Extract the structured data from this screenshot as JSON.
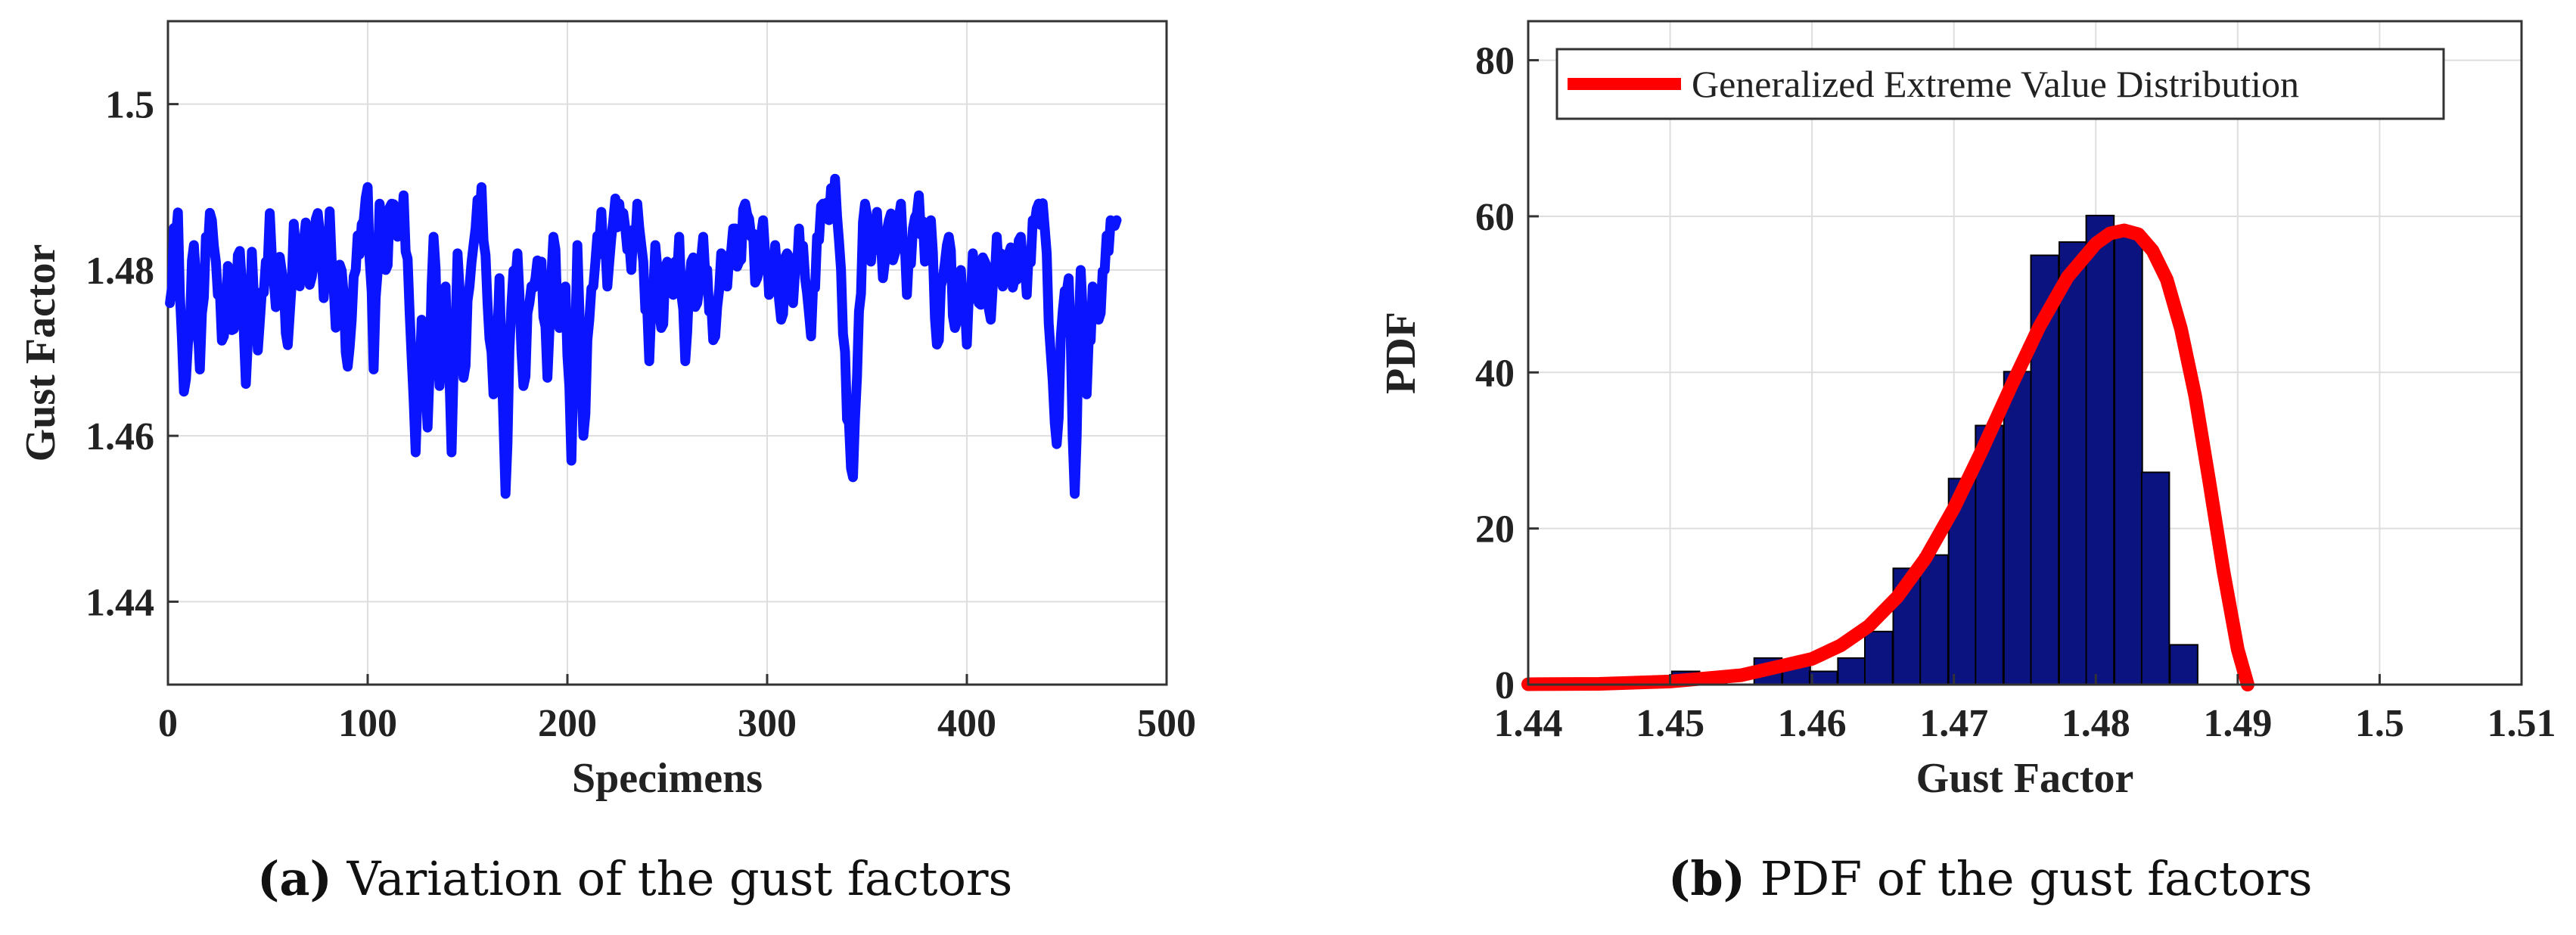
{
  "chart_data": [
    {
      "type": "line",
      "panel": "a",
      "xlabel": "Specimens",
      "ylabel": "Gust Factor",
      "xlim": [
        0,
        500
      ],
      "ylim": [
        1.43,
        1.51
      ],
      "xticks": [
        0,
        100,
        200,
        300,
        400,
        500
      ],
      "yticks": [
        1.44,
        1.46,
        1.48,
        1.5
      ],
      "xtick_labels": [
        "0",
        "100",
        "200",
        "300",
        "400",
        "500"
      ],
      "ytick_labels": [
        "1.44",
        "1.46",
        "1.48",
        "1.5"
      ],
      "grid": true,
      "series": [
        {
          "name": "Gust factor",
          "color": "#0a14ff",
          "description": "one gust factor per specimen, specimens 1-475",
          "x_end": 475,
          "knots": [
            [
              1,
              1.476
            ],
            [
              3,
              1.483
            ],
            [
              5,
              1.485
            ],
            [
              8,
              1.465
            ],
            [
              10,
              1.471
            ],
            [
              13,
              1.483
            ],
            [
              16,
              1.468
            ],
            [
              19,
              1.484
            ],
            [
              22,
              1.486
            ],
            [
              25,
              1.477
            ],
            [
              28,
              1.472
            ],
            [
              30,
              1.48
            ],
            [
              33,
              1.471
            ],
            [
              36,
              1.484
            ],
            [
              39,
              1.467
            ],
            [
              42,
              1.48
            ],
            [
              45,
              1.471
            ],
            [
              48,
              1.479
            ],
            [
              51,
              1.485
            ],
            [
              54,
              1.475
            ],
            [
              57,
              1.482
            ],
            [
              60,
              1.47
            ],
            [
              63,
              1.484
            ],
            [
              66,
              1.48
            ],
            [
              69,
              1.486
            ],
            [
              72,
              1.477
            ],
            [
              75,
              1.488
            ],
            [
              78,
              1.478
            ],
            [
              81,
              1.485
            ],
            [
              84,
              1.473
            ],
            [
              87,
              1.482
            ],
            [
              90,
              1.467
            ],
            [
              93,
              1.478
            ],
            [
              96,
              1.484
            ],
            [
              100,
              1.49
            ],
            [
              103,
              1.468
            ],
            [
              106,
              1.488
            ],
            [
              109,
              1.48
            ],
            [
              112,
              1.488
            ],
            [
              115,
              1.484
            ],
            [
              118,
              1.489
            ],
            [
              121,
              1.475
            ],
            [
              124,
              1.458
            ],
            [
              127,
              1.474
            ],
            [
              130,
              1.461
            ],
            [
              133,
              1.484
            ],
            [
              136,
              1.466
            ],
            [
              139,
              1.478
            ],
            [
              142,
              1.458
            ],
            [
              145,
              1.482
            ],
            [
              148,
              1.467
            ],
            [
              151,
              1.478
            ],
            [
              154,
              1.485
            ],
            [
              157,
              1.49
            ],
            [
              160,
              1.476
            ],
            [
              163,
              1.465
            ],
            [
              166,
              1.479
            ],
            [
              169,
              1.453
            ],
            [
              172,
              1.476
            ],
            [
              175,
              1.482
            ],
            [
              178,
              1.466
            ],
            [
              181,
              1.476
            ],
            [
              184,
              1.479
            ],
            [
              187,
              1.481
            ],
            [
              190,
              1.467
            ],
            [
              193,
              1.484
            ],
            [
              196,
              1.473
            ],
            [
              199,
              1.478
            ],
            [
              202,
              1.457
            ],
            [
              205,
              1.483
            ],
            [
              208,
              1.46
            ],
            [
              211,
              1.474
            ],
            [
              214,
              1.481
            ],
            [
              217,
              1.487
            ],
            [
              220,
              1.478
            ],
            [
              223,
              1.486
            ],
            [
              226,
              1.488
            ],
            [
              229,
              1.485
            ],
            [
              232,
              1.48
            ],
            [
              235,
              1.488
            ],
            [
              238,
              1.481
            ],
            [
              241,
              1.469
            ],
            [
              244,
              1.483
            ],
            [
              247,
              1.473
            ],
            [
              250,
              1.481
            ],
            [
              253,
              1.477
            ],
            [
              256,
              1.484
            ],
            [
              259,
              1.469
            ],
            [
              262,
              1.481
            ],
            [
              265,
              1.476
            ],
            [
              268,
              1.484
            ],
            [
              271,
              1.475
            ],
            [
              274,
              1.472
            ],
            [
              277,
              1.482
            ],
            [
              280,
              1.478
            ],
            [
              283,
              1.485
            ],
            [
              286,
              1.481
            ],
            [
              289,
              1.488
            ],
            [
              292,
              1.484
            ],
            [
              295,
              1.479
            ],
            [
              298,
              1.486
            ],
            [
              301,
              1.477
            ],
            [
              304,
              1.483
            ],
            [
              307,
              1.474
            ],
            [
              310,
              1.482
            ],
            [
              313,
              1.476
            ],
            [
              316,
              1.485
            ],
            [
              319,
              1.479
            ],
            [
              322,
              1.472
            ],
            [
              325,
              1.484
            ],
            [
              328,
              1.488
            ],
            [
              331,
              1.486
            ],
            [
              334,
              1.491
            ],
            [
              337,
              1.48
            ],
            [
              340,
              1.462
            ],
            [
              343,
              1.455
            ],
            [
              346,
              1.475
            ],
            [
              349,
              1.488
            ],
            [
              352,
              1.481
            ],
            [
              355,
              1.487
            ],
            [
              358,
              1.479
            ],
            [
              361,
              1.486
            ],
            [
              364,
              1.482
            ],
            [
              367,
              1.488
            ],
            [
              370,
              1.477
            ],
            [
              373,
              1.485
            ],
            [
              376,
              1.489
            ],
            [
              379,
              1.481
            ],
            [
              382,
              1.486
            ],
            [
              385,
              1.471
            ],
            [
              388,
              1.479
            ],
            [
              391,
              1.484
            ],
            [
              394,
              1.473
            ],
            [
              397,
              1.48
            ],
            [
              400,
              1.471
            ],
            [
              403,
              1.482
            ],
            [
              406,
              1.476
            ],
            [
              409,
              1.481
            ],
            [
              412,
              1.474
            ],
            [
              415,
              1.484
            ],
            [
              418,
              1.478
            ],
            [
              421,
              1.482
            ],
            [
              424,
              1.479
            ],
            [
              427,
              1.484
            ],
            [
              430,
              1.477
            ],
            [
              433,
              1.486
            ],
            [
              436,
              1.488
            ],
            [
              439,
              1.485
            ],
            [
              442,
              1.47
            ],
            [
              445,
              1.459
            ],
            [
              448,
              1.475
            ],
            [
              451,
              1.479
            ],
            [
              454,
              1.453
            ],
            [
              457,
              1.48
            ],
            [
              460,
              1.465
            ],
            [
              463,
              1.478
            ],
            [
              466,
              1.474
            ],
            [
              469,
              1.48
            ],
            [
              472,
              1.486
            ],
            [
              475,
              1.486
            ]
          ]
        }
      ]
    },
    {
      "type": "bar",
      "panel": "b",
      "xlabel": "Gust Factor",
      "ylabel": "PDF",
      "xlim": [
        1.44,
        1.51
      ],
      "ylim": [
        0,
        85
      ],
      "xticks": [
        1.44,
        1.45,
        1.46,
        1.47,
        1.48,
        1.49,
        1.5,
        1.51
      ],
      "yticks": [
        0,
        20,
        40,
        60,
        80
      ],
      "xtick_labels": [
        "1.44",
        "1.45",
        "1.46",
        "1.47",
        "1.48",
        "1.49",
        "1.5",
        "1.51"
      ],
      "ytick_labels": [
        "0",
        "20",
        "40",
        "60",
        "80"
      ],
      "grid": true,
      "legend": {
        "position": "top",
        "entries": [
          "Generalized Extreme Value Distribution"
        ]
      },
      "bar_width": 0.00195,
      "bins": [
        {
          "x": 1.4452,
          "value": 0.0
        },
        {
          "x": 1.4472,
          "value": 0.0
        },
        {
          "x": 1.4491,
          "value": 0.0
        },
        {
          "x": 1.4511,
          "value": 1.7
        },
        {
          "x": 1.453,
          "value": 1.2
        },
        {
          "x": 1.455,
          "value": 0.0
        },
        {
          "x": 1.4569,
          "value": 3.4
        },
        {
          "x": 1.4589,
          "value": 3.0
        },
        {
          "x": 1.4608,
          "value": 1.7
        },
        {
          "x": 1.4628,
          "value": 3.4
        },
        {
          "x": 1.4647,
          "value": 6.8
        },
        {
          "x": 1.4667,
          "value": 14.9
        },
        {
          "x": 1.4686,
          "value": 16.6
        },
        {
          "x": 1.4706,
          "value": 26.4
        },
        {
          "x": 1.4725,
          "value": 33.2
        },
        {
          "x": 1.4745,
          "value": 40.1
        },
        {
          "x": 1.4764,
          "value": 55.0
        },
        {
          "x": 1.4784,
          "value": 56.7
        },
        {
          "x": 1.4803,
          "value": 60.1
        },
        {
          "x": 1.4823,
          "value": 57.6
        },
        {
          "x": 1.4842,
          "value": 27.2
        },
        {
          "x": 1.4862,
          "value": 5.1
        }
      ],
      "bar_color": "#0b1380",
      "series": [
        {
          "name": "Generalized Extreme Value Distribution",
          "color": "#ff0000",
          "x": [
            1.44,
            1.445,
            1.45,
            1.455,
            1.46,
            1.462,
            1.464,
            1.466,
            1.468,
            1.47,
            1.472,
            1.474,
            1.476,
            1.478,
            1.48,
            1.481,
            1.482,
            1.483,
            1.484,
            1.485,
            1.486,
            1.487,
            1.488,
            1.489,
            1.49,
            1.4907
          ],
          "y": [
            0.05,
            0.1,
            0.4,
            1.2,
            3.3,
            5.0,
            7.5,
            11.2,
            16.2,
            22.6,
            30.1,
            38.1,
            45.8,
            52.2,
            56.5,
            57.8,
            58.2,
            57.7,
            55.6,
            51.9,
            45.6,
            37.0,
            26.0,
            14.5,
            4.5,
            0.0
          ]
        }
      ]
    }
  ],
  "captions": {
    "a_label": "(a)",
    "a_text": "Variation of the gust factors",
    "b_label": "(b)",
    "b_text": "PDF of the gust factors"
  }
}
